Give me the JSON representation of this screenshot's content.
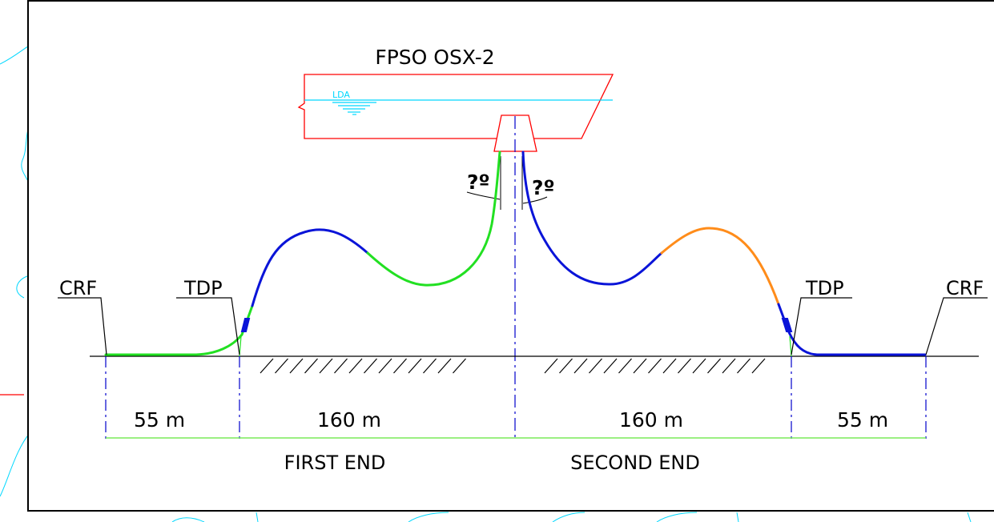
{
  "title": "FPSO OSX-2",
  "waterline_label": "LDA",
  "angle_left": "?º",
  "angle_right": "?º",
  "labels": {
    "crf_left": "CRF",
    "crf_right": "CRF",
    "tdp_left": "TDP",
    "tdp_right": "TDP"
  },
  "dimensions": {
    "left_outer": "55 m",
    "left_inner": "160 m",
    "right_inner": "160 m",
    "right_outer": "55 m"
  },
  "ends": {
    "first": "FIRST END",
    "second": "SECOND END"
  },
  "colors": {
    "frame": "#000000",
    "vessel": "#ff0000",
    "water": "#00d8ff",
    "line_green": "#22e022",
    "line_blue": "#0a14d8",
    "line_orange": "#ff8c1a",
    "dimension": "#7aeb5a",
    "centerline": "#0000cc",
    "cad_background": "#00d8ff"
  }
}
